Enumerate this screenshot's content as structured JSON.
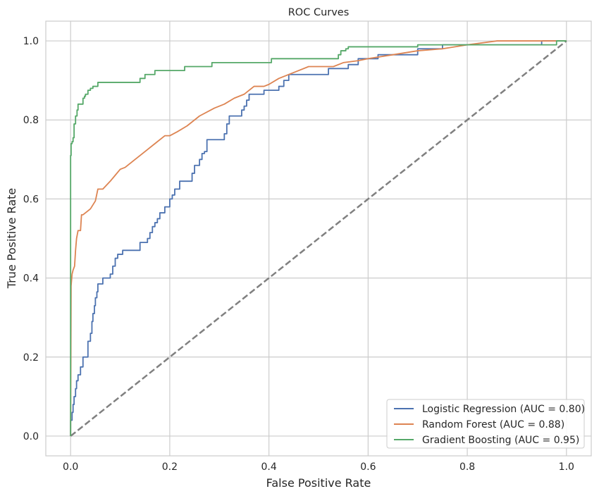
{
  "chart_data": {
    "type": "line",
    "title": "ROC Curves",
    "xlabel": "False Positive Rate",
    "ylabel": "True Positive Rate",
    "xlim": [
      -0.05,
      1.05
    ],
    "ylim": [
      -0.05,
      1.05
    ],
    "xticks": [
      0.0,
      0.2,
      0.4,
      0.6,
      0.8,
      1.0
    ],
    "yticks": [
      0.0,
      0.2,
      0.4,
      0.6,
      0.8,
      1.0
    ],
    "xtick_labels": [
      "0.0",
      "0.2",
      "0.4",
      "0.6",
      "0.8",
      "1.0"
    ],
    "ytick_labels": [
      "0.0",
      "0.2",
      "0.4",
      "0.6",
      "0.8",
      "1.0"
    ],
    "grid": true,
    "legend_position": "lower right",
    "diagonal": {
      "x": [
        0,
        1
      ],
      "y": [
        0,
        1
      ],
      "color": "#808080",
      "style": "dashed"
    },
    "series": [
      {
        "name": "Logistic Regression (AUC = 0.80)",
        "color": "#4c72b0",
        "step": true,
        "x": [
          0,
          0.003,
          0.005,
          0.007,
          0.01,
          0.012,
          0.015,
          0.02,
          0.025,
          0.035,
          0.04,
          0.043,
          0.045,
          0.048,
          0.05,
          0.053,
          0.055,
          0.058,
          0.06,
          0.065,
          0.08,
          0.085,
          0.09,
          0.095,
          0.1,
          0.105,
          0.12,
          0.14,
          0.15,
          0.155,
          0.16,
          0.165,
          0.17,
          0.175,
          0.18,
          0.185,
          0.19,
          0.2,
          0.205,
          0.21,
          0.215,
          0.22,
          0.23,
          0.245,
          0.25,
          0.26,
          0.265,
          0.27,
          0.275,
          0.28,
          0.29,
          0.31,
          0.315,
          0.32,
          0.33,
          0.345,
          0.35,
          0.355,
          0.36,
          0.37,
          0.38,
          0.39,
          0.4,
          0.42,
          0.43,
          0.44,
          0.45,
          0.52,
          0.56,
          0.58,
          0.6,
          0.62,
          0.65,
          0.7,
          0.75,
          0.8,
          0.95,
          0.97,
          1.0
        ],
        "y": [
          0,
          0.04,
          0.06,
          0.08,
          0.1,
          0.12,
          0.14,
          0.155,
          0.175,
          0.2,
          0.24,
          0.26,
          0.29,
          0.31,
          0.33,
          0.35,
          0.365,
          0.385,
          0.385,
          0.385,
          0.4,
          0.41,
          0.43,
          0.45,
          0.46,
          0.46,
          0.47,
          0.47,
          0.49,
          0.49,
          0.5,
          0.515,
          0.53,
          0.54,
          0.55,
          0.565,
          0.565,
          0.58,
          0.6,
          0.61,
          0.625,
          0.625,
          0.645,
          0.645,
          0.665,
          0.685,
          0.7,
          0.715,
          0.72,
          0.75,
          0.75,
          0.75,
          0.765,
          0.79,
          0.81,
          0.81,
          0.825,
          0.835,
          0.85,
          0.865,
          0.865,
          0.865,
          0.875,
          0.875,
          0.885,
          0.9,
          0.915,
          0.915,
          0.93,
          0.94,
          0.955,
          0.955,
          0.965,
          0.965,
          0.98,
          0.99,
          0.99,
          1.0,
          1.0
        ]
      },
      {
        "name": "Random Forest (AUC = 0.88)",
        "color": "#dd8452",
        "step": false,
        "x": [
          0,
          0.001,
          0.003,
          0.005,
          0.008,
          0.01,
          0.012,
          0.015,
          0.02,
          0.022,
          0.025,
          0.03,
          0.04,
          0.045,
          0.05,
          0.055,
          0.06,
          0.065,
          0.08,
          0.09,
          0.1,
          0.11,
          0.12,
          0.13,
          0.145,
          0.155,
          0.17,
          0.19,
          0.2,
          0.215,
          0.235,
          0.26,
          0.29,
          0.31,
          0.33,
          0.35,
          0.37,
          0.39,
          0.4,
          0.42,
          0.45,
          0.48,
          0.53,
          0.55,
          0.58,
          0.6,
          0.65,
          0.7,
          0.75,
          0.8,
          0.86,
          0.95,
          1.0
        ],
        "y": [
          0,
          0.38,
          0.41,
          0.42,
          0.43,
          0.47,
          0.5,
          0.52,
          0.52,
          0.56,
          0.56,
          0.565,
          0.575,
          0.585,
          0.595,
          0.625,
          0.625,
          0.625,
          0.645,
          0.66,
          0.675,
          0.68,
          0.69,
          0.7,
          0.715,
          0.725,
          0.74,
          0.76,
          0.76,
          0.77,
          0.785,
          0.81,
          0.83,
          0.84,
          0.855,
          0.865,
          0.885,
          0.885,
          0.89,
          0.905,
          0.92,
          0.935,
          0.935,
          0.945,
          0.95,
          0.955,
          0.965,
          0.975,
          0.98,
          0.99,
          1.0,
          1.0,
          1.0
        ]
      },
      {
        "name": "Gradient Boosting (AUC = 0.95)",
        "color": "#55a868",
        "step": true,
        "x": [
          0,
          0.001,
          0.003,
          0.005,
          0.007,
          0.01,
          0.013,
          0.015,
          0.025,
          0.028,
          0.03,
          0.035,
          0.04,
          0.045,
          0.05,
          0.055,
          0.14,
          0.145,
          0.15,
          0.165,
          0.17,
          0.225,
          0.23,
          0.28,
          0.285,
          0.4,
          0.405,
          0.54,
          0.545,
          0.555,
          0.56,
          0.7,
          0.705,
          0.98,
          0.985,
          1.0
        ],
        "y": [
          0,
          0.71,
          0.74,
          0.745,
          0.755,
          0.79,
          0.81,
          0.825,
          0.84,
          0.855,
          0.86,
          0.865,
          0.875,
          0.88,
          0.885,
          0.885,
          0.895,
          0.905,
          0.905,
          0.915,
          0.915,
          0.925,
          0.925,
          0.935,
          0.935,
          0.945,
          0.945,
          0.955,
          0.965,
          0.975,
          0.98,
          0.985,
          0.99,
          0.99,
          1.0,
          1.0
        ]
      }
    ]
  }
}
